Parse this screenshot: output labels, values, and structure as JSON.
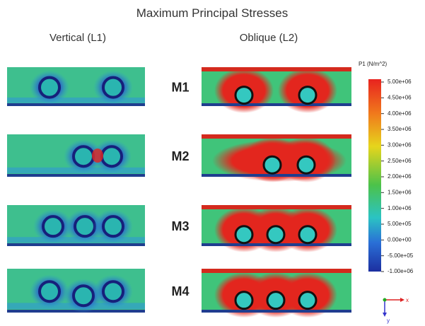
{
  "title": "Maximum Principal Stresses",
  "columns": [
    "Vertical (L1)",
    "Oblique (L2)"
  ],
  "rows": [
    "M1",
    "M2",
    "M3",
    "M4"
  ],
  "legend": {
    "title": "P1 (N/m^2)",
    "ticks": [
      "5.00e+06",
      "4.50e+06",
      "4.00e+06",
      "3.50e+06",
      "3.00e+06",
      "2.50e+06",
      "2.00e+06",
      "1.50e+06",
      "1.00e+06",
      "5.00e+05",
      "0.00e+00",
      "-5.00e+05",
      "-1.00e+06"
    ]
  },
  "axes": {
    "x": "x",
    "y": "y"
  }
}
